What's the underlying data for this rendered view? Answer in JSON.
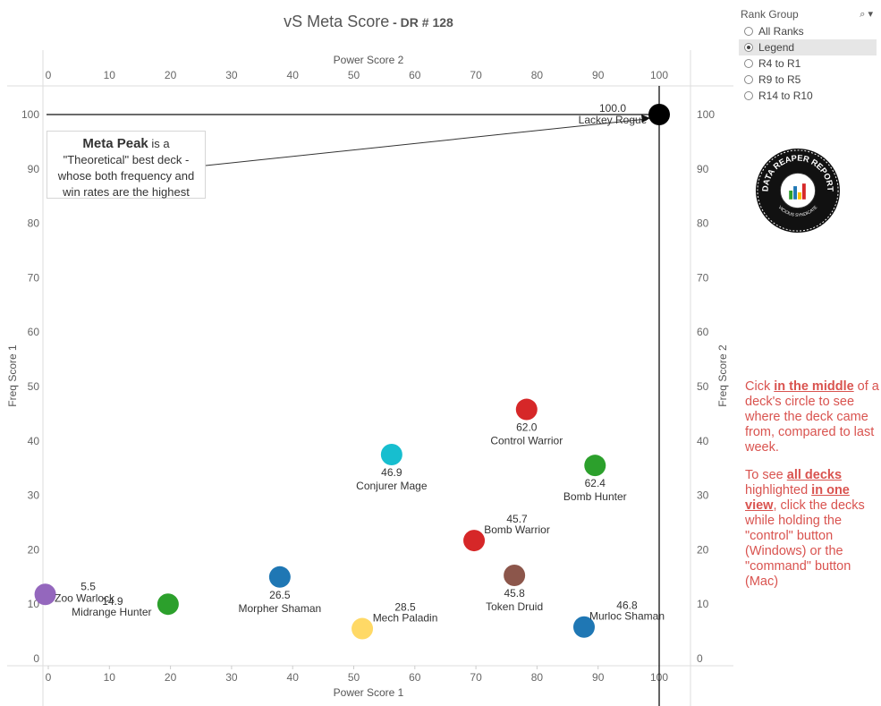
{
  "title": {
    "main": "vS Meta Score",
    "sub": " - DR # 128"
  },
  "callout": {
    "bold": "Meta Peak",
    "rest1": " is a",
    "line2": "\"Theoretical\" best deck -",
    "line3": "whose both frequency and",
    "line4": "win rates are the highest"
  },
  "rank_group": {
    "title": "Rank Group",
    "search_icon": "search-icon",
    "menu_icon": "caret-down-icon",
    "options": [
      "All Ranks",
      "Legend",
      "R4 to R1",
      "R9 to R5",
      "R14 to R10"
    ],
    "selected": "Legend"
  },
  "help": {
    "p1_a": "Cick ",
    "p1_b": "in the middle",
    "p1_c": " of a deck's circle to see where the deck came from, compared to last week.",
    "p2_a": "To see ",
    "p2_b": "all decks ",
    "p2_c": " highlighted ",
    "p2_d": "in one view",
    "p2_e": ", click the decks while holding the \"control\" button (Windows) or the \"command\" button (Mac)"
  },
  "logo": {
    "text_top": "DATA REAPER REPORT",
    "text_bottom": "VICIOUS SYNDICATE"
  },
  "chart_data": {
    "type": "scatter",
    "x_label_bottom": "Power Score 1",
    "x_label_top": "Power Score 2",
    "y_label_left": "Freq Score 1",
    "y_label_right": "Freq Score 2",
    "xlim": [
      0,
      105
    ],
    "ylim": [
      0,
      105
    ],
    "x_ticks": [
      0,
      10,
      20,
      30,
      40,
      50,
      60,
      70,
      80,
      90,
      100
    ],
    "y_ticks": [
      0,
      10,
      20,
      30,
      40,
      50,
      60,
      70,
      80,
      90,
      100
    ],
    "meta_peak": {
      "x": 100,
      "y": 100,
      "score": "100.0",
      "name": "Lackey Rogue",
      "color": "#000000"
    },
    "points": [
      {
        "name": "Control Warrior",
        "score": "62.0",
        "x": 78.3,
        "y": 45.8,
        "color": "#d62728",
        "label_pos": "below"
      },
      {
        "name": "Bomb Hunter",
        "score": "62.4",
        "x": 89.5,
        "y": 35.5,
        "color": "#2ca02c",
        "label_pos": "below"
      },
      {
        "name": "Conjurer Mage",
        "score": "46.9",
        "x": 56.2,
        "y": 37.5,
        "color": "#17becf",
        "label_pos": "below"
      },
      {
        "name": "Bomb Warrior",
        "score": "45.7",
        "x": 69.7,
        "y": 21.7,
        "color": "#d62728",
        "label_pos": "above-right"
      },
      {
        "name": "Token Druid",
        "score": "45.8",
        "x": 76.3,
        "y": 15.3,
        "color": "#8c564b",
        "label_pos": "below"
      },
      {
        "name": "Murloc Shaman",
        "score": "46.8",
        "x": 87.7,
        "y": 5.8,
        "color": "#1f77b4",
        "label_pos": "above-right"
      },
      {
        "name": "Mech Paladin",
        "score": "28.5",
        "x": 51.4,
        "y": 5.5,
        "color": "#ffd966",
        "label_pos": "above-right"
      },
      {
        "name": "Morpher Shaman",
        "score": "26.5",
        "x": 37.9,
        "y": 15.0,
        "color": "#1f77b4",
        "label_pos": "below"
      },
      {
        "name": "Midrange Hunter",
        "score": "14.9",
        "x": 19.6,
        "y": 10.0,
        "color": "#2ca02c",
        "label_pos": "left"
      },
      {
        "name": "Zoo Warlock",
        "score": "5.5",
        "x": -0.5,
        "y": 11.8,
        "color": "#9467bd",
        "label_pos": "right"
      }
    ],
    "grid": false
  }
}
